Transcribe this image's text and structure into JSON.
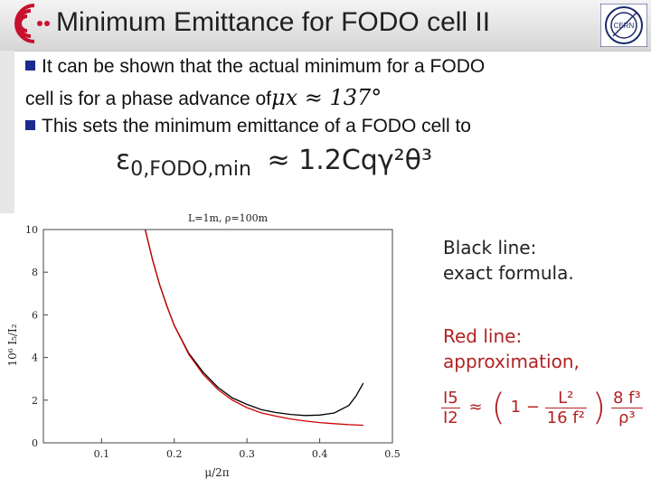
{
  "slide": {
    "title": "Minimum Emittance for FODO cell II",
    "bullets": [
      {
        "text": "It can be shown that the actual minimum for a FODO",
        "text2": "cell is for a phase advance of",
        "math": "μx ≈ 137°"
      },
      {
        "text": "This sets the minimum emittance of a FODO cell to"
      }
    ],
    "formula": {
      "lhs": "ε",
      "lhs_sub": "0,FODO,min",
      "rhs": "≈ 1.2Cqγ²θ³"
    },
    "legend": {
      "black_line1": "Black line:",
      "black_line2": "exact formula.",
      "red_line1": "Red line:",
      "red_line2": "approximation,"
    },
    "approx_formula": {
      "lhs_num": "I5",
      "lhs_den": "I2",
      "approx": "≈",
      "one": "1 −",
      "num": "L²",
      "den": "16 f²",
      "num2": "8 f³",
      "den2": "ρ³"
    },
    "colors": {
      "accent": "#1b2a8f",
      "logo_red": "#c8102e",
      "exact_line": "#000000",
      "approx_line": "#cc0000"
    }
  },
  "chart_data": {
    "type": "line",
    "title": "L=1m, ρ=100m",
    "xlabel": "μ/2π",
    "ylabel": "10⁶ I₅/I₂",
    "xlim": [
      0.02,
      0.5
    ],
    "ylim": [
      0,
      10
    ],
    "xticks": [
      0.1,
      0.2,
      0.3,
      0.4,
      0.5
    ],
    "yticks": [
      0,
      2,
      4,
      6,
      8,
      10
    ],
    "series": [
      {
        "name": "exact",
        "color": "#000000",
        "x": [
          0.16,
          0.17,
          0.18,
          0.19,
          0.2,
          0.22,
          0.24,
          0.26,
          0.28,
          0.3,
          0.32,
          0.34,
          0.36,
          0.38,
          0.4,
          0.42,
          0.44,
          0.45,
          0.46
        ],
        "y": [
          10.0,
          8.6,
          7.4,
          6.4,
          5.5,
          4.2,
          3.3,
          2.6,
          2.1,
          1.8,
          1.55,
          1.42,
          1.33,
          1.28,
          1.3,
          1.4,
          1.75,
          2.2,
          2.8
        ]
      },
      {
        "name": "approximation",
        "color": "#cc0000",
        "x": [
          0.16,
          0.17,
          0.18,
          0.19,
          0.2,
          0.22,
          0.24,
          0.26,
          0.28,
          0.3,
          0.32,
          0.34,
          0.36,
          0.38,
          0.4,
          0.42,
          0.44,
          0.46
        ],
        "y": [
          10.0,
          8.6,
          7.4,
          6.4,
          5.5,
          4.15,
          3.2,
          2.5,
          2.0,
          1.65,
          1.4,
          1.25,
          1.12,
          1.02,
          0.95,
          0.9,
          0.85,
          0.82
        ]
      }
    ],
    "grid": false
  }
}
